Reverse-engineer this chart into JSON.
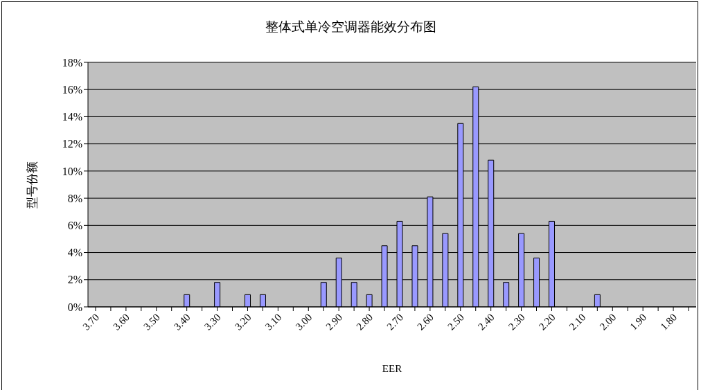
{
  "chart_data": {
    "type": "bar",
    "title": "整体式单冷空调器能效分布图",
    "xlabel": "EER",
    "ylabel": "型号份额",
    "categories": [
      "3.70",
      null,
      "3.60",
      null,
      "3.50",
      null,
      "3.40",
      null,
      "3.30",
      null,
      "3.20",
      null,
      "3.10",
      null,
      "3.00",
      null,
      "2.90",
      null,
      "2.80",
      null,
      "2.70",
      null,
      "2.60",
      null,
      "2.50",
      null,
      "2.40",
      null,
      "2.30",
      null,
      "2.20",
      null,
      "2.10",
      null,
      "2.00",
      null,
      "1.90",
      null,
      "1.80",
      null
    ],
    "values": [
      0,
      0,
      0,
      0,
      0,
      0,
      0.9,
      0,
      1.8,
      0,
      0.9,
      0.9,
      0,
      0,
      0,
      1.8,
      3.6,
      1.8,
      0.9,
      4.5,
      6.3,
      4.5,
      8.1,
      5.4,
      13.5,
      16.2,
      10.8,
      1.8,
      5.4,
      3.6,
      6.3,
      0,
      0,
      0.9,
      0,
      0,
      0,
      0,
      0,
      0
    ],
    "color": "#9999ff",
    "ylim": [
      0,
      18
    ],
    "yticks": [
      {
        "value": 0,
        "label": "0%"
      },
      {
        "value": 2,
        "label": "2%"
      },
      {
        "value": 4,
        "label": "4%"
      },
      {
        "value": 6,
        "label": "6%"
      },
      {
        "value": 8,
        "label": "8%"
      },
      {
        "value": 10,
        "label": "10%"
      },
      {
        "value": 12,
        "label": "12%"
      },
      {
        "value": 14,
        "label": "14%"
      },
      {
        "value": 16,
        "label": "16%"
      },
      {
        "value": 18,
        "label": "18%"
      }
    ],
    "grid": "y",
    "legend": false
  }
}
